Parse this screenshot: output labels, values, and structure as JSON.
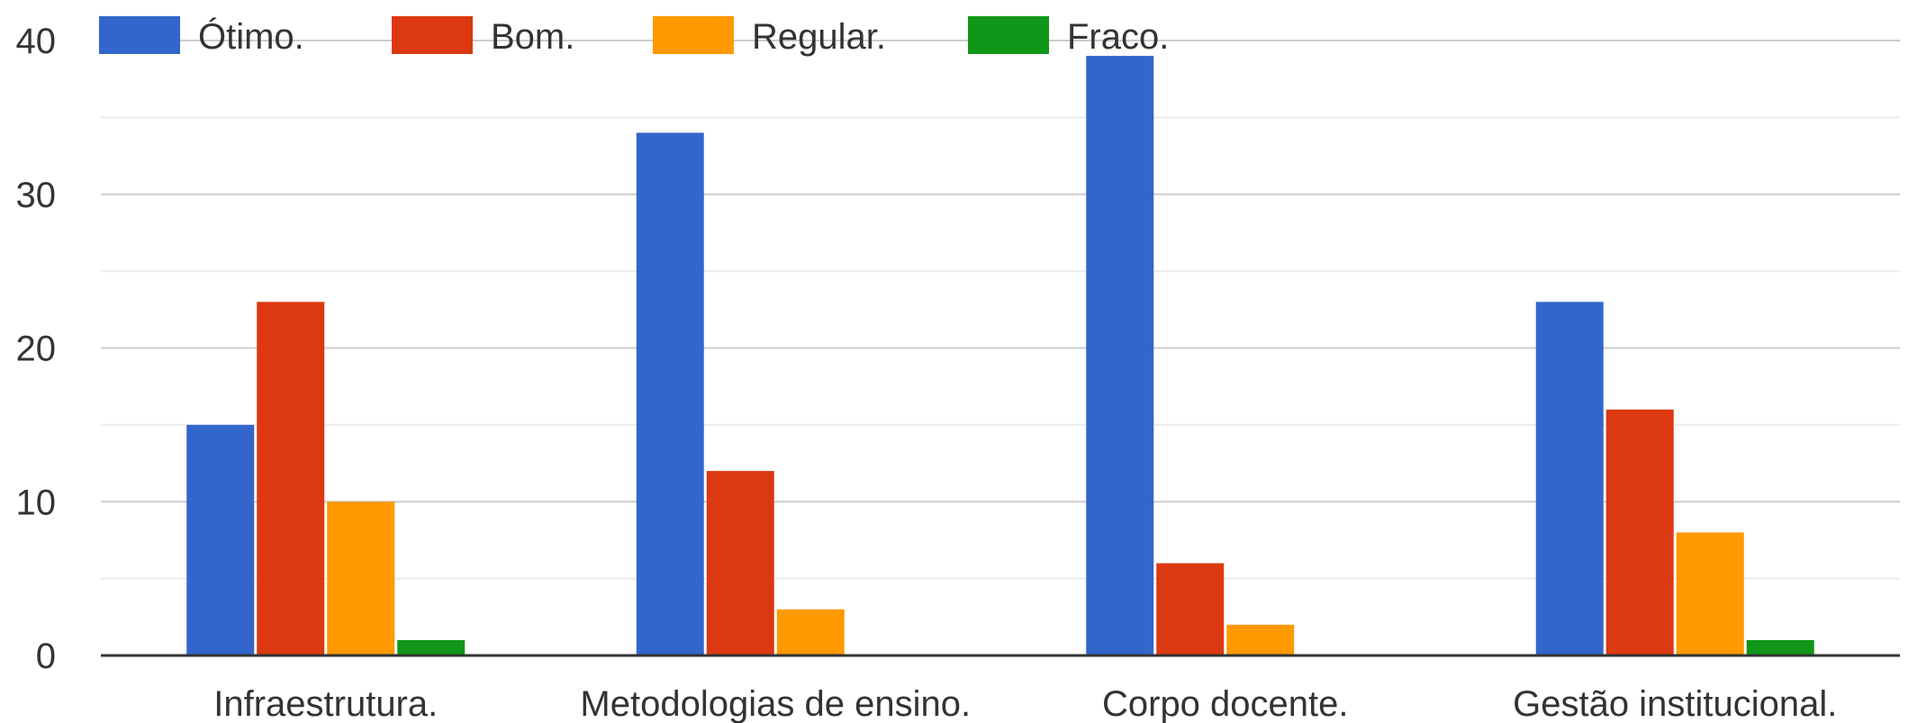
{
  "chart_data": {
    "type": "bar",
    "title": "",
    "xlabel": "",
    "ylabel": "",
    "categories": [
      "Infraestrutura.",
      "Metodologias de ensino.",
      "Corpo docente.",
      "Gestão institucional."
    ],
    "series": [
      {
        "name": "Ótimo.",
        "color": "#3366CC",
        "values": [
          15,
          34,
          39,
          23
        ]
      },
      {
        "name": "Bom.",
        "color": "#DC3912",
        "values": [
          23,
          12,
          6,
          16
        ]
      },
      {
        "name": "Regular.",
        "color": "#FF9900",
        "values": [
          10,
          3,
          2,
          8
        ]
      },
      {
        "name": "Fraco.",
        "color": "#109618",
        "values": [
          1,
          0,
          0,
          1
        ]
      }
    ],
    "ylim": [
      0,
      40
    ],
    "yticks": [
      0,
      10,
      20,
      30,
      40
    ],
    "grid": true,
    "legend_position": "top-left"
  }
}
